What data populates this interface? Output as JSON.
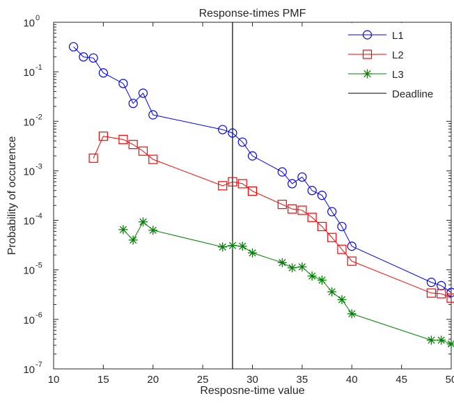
{
  "chart_data": {
    "type": "line",
    "title": "Response-times PMF",
    "xlabel": "Resposne-time value",
    "ylabel": "Probability of occurence",
    "xlim": [
      10,
      50
    ],
    "ylim": [
      1e-07,
      1
    ],
    "yscale": "log",
    "grid": false,
    "legend_position": "top-right",
    "x_ticks": [
      "10",
      "15",
      "20",
      "25",
      "30",
      "35",
      "40",
      "45",
      "50"
    ],
    "y_ticks": [
      {
        "base": "10",
        "exp": "0"
      },
      {
        "base": "10",
        "exp": "-1"
      },
      {
        "base": "10",
        "exp": "-2"
      },
      {
        "base": "10",
        "exp": "-3"
      },
      {
        "base": "10",
        "exp": "-4"
      },
      {
        "base": "10",
        "exp": "-5"
      },
      {
        "base": "10",
        "exp": "-6"
      },
      {
        "base": "10",
        "exp": "-7"
      }
    ],
    "series": [
      {
        "name": "L1",
        "color": "#0000ff",
        "marker": "circle",
        "x": [
          12,
          13,
          14,
          15,
          17,
          18,
          19,
          20,
          27,
          28,
          29,
          30,
          33,
          34,
          35,
          36,
          37,
          38,
          39,
          40,
          48,
          49,
          50
        ],
        "y": [
          0.32,
          0.2,
          0.19,
          0.095,
          0.058,
          0.023,
          0.037,
          0.0135,
          0.0068,
          0.0058,
          0.0038,
          0.002,
          0.00095,
          0.00055,
          0.00075,
          0.0004,
          0.00032,
          0.00015,
          7.5e-05,
          3e-05,
          5.6e-06,
          4.8e-06,
          3.5e-06
        ]
      },
      {
        "name": "L2",
        "color": "#ff0000",
        "marker": "square",
        "x": [
          14,
          15,
          17,
          18,
          19,
          20,
          27,
          28,
          29,
          30,
          33,
          34,
          35,
          36,
          37,
          38,
          39,
          40,
          48,
          49,
          50
        ],
        "y": [
          0.0018,
          0.005,
          0.0043,
          0.0034,
          0.0025,
          0.0017,
          0.0005,
          0.0006,
          0.00055,
          0.00039,
          0.00021,
          0.00017,
          0.00016,
          0.000115,
          7.5e-05,
          4.5e-05,
          2.6e-05,
          1.5e-05,
          3.4e-06,
          3.3e-06,
          2.7e-06
        ]
      },
      {
        "name": "L3",
        "color": "#008000",
        "marker": "asterisk",
        "x": [
          17,
          18,
          19,
          20,
          27,
          28,
          29,
          30,
          33,
          34,
          35,
          36,
          37,
          38,
          39,
          40,
          48,
          49,
          50
        ],
        "y": [
          6.5e-05,
          4e-05,
          9.3e-05,
          6.3e-05,
          2.9e-05,
          3.1e-05,
          3e-05,
          2.2e-05,
          1.4e-05,
          1.1e-05,
          1.15e-05,
          7.5e-06,
          6.2e-06,
          3.6e-06,
          2.5e-06,
          1.3e-06,
          3.8e-07,
          3.8e-07,
          3.2e-07
        ]
      }
    ],
    "reference_lines": [
      {
        "name": "Deadline",
        "orientation": "vertical",
        "x": 28,
        "color": "#000000"
      }
    ]
  }
}
